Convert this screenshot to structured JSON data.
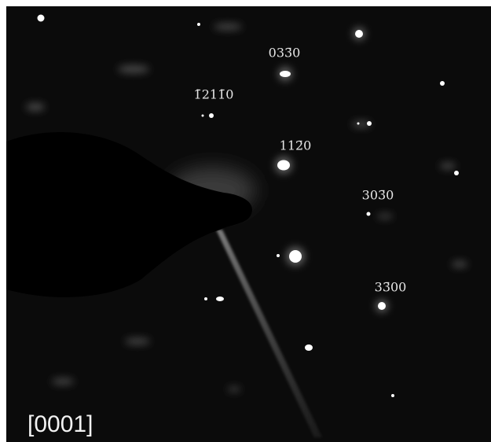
{
  "zone_axis": "[0001]",
  "annotations": [
    {
      "text": "033̄0"
    },
    {
      "text": "1̄211̄0"
    },
    {
      "text": "112̄0"
    },
    {
      "text": "303̄0"
    },
    {
      "text": "33̄00"
    }
  ]
}
